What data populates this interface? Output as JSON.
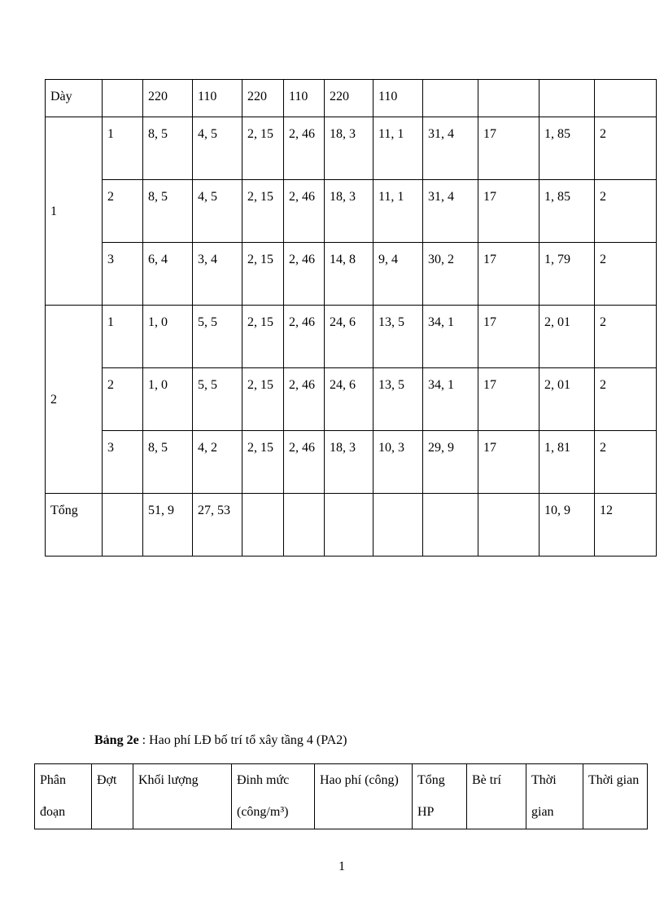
{
  "table1": {
    "header": [
      "Dày",
      "",
      "220",
      "110",
      "220",
      "110",
      "220",
      "110",
      "",
      "",
      "",
      ""
    ],
    "groups": [
      {
        "label": "1",
        "rows": [
          [
            "1",
            "8, 5",
            "4, 5",
            "2, 15",
            "2, 46",
            "18, 3",
            "11, 1",
            "31, 4",
            "17",
            "1, 85",
            "2"
          ],
          [
            "2",
            "8, 5",
            "4, 5",
            "2, 15",
            "2, 46",
            "18, 3",
            "11, 1",
            "31, 4",
            "17",
            "1, 85",
            "2"
          ],
          [
            "3",
            "6, 4",
            "3, 4",
            "2, 15",
            "2, 46",
            "14, 8",
            "9, 4",
            "30, 2",
            "17",
            "1, 79",
            "2"
          ]
        ]
      },
      {
        "label": "2",
        "rows": [
          [
            "1",
            "1, 0",
            "5, 5",
            "2, 15",
            "2, 46",
            "24, 6",
            "13, 5",
            "34, 1",
            "17",
            "2, 01",
            "2"
          ],
          [
            "2",
            "1, 0",
            "5, 5",
            "2, 15",
            "2, 46",
            "24, 6",
            "13, 5",
            "34, 1",
            "17",
            "2, 01",
            "2"
          ],
          [
            "3",
            "8, 5",
            "4, 2",
            "2, 15",
            "2, 46",
            "18, 3",
            "10, 3",
            "29, 9",
            "17",
            "1, 81",
            "2"
          ]
        ]
      }
    ],
    "total": [
      "Tổng",
      "",
      "51, 9",
      "27, 53",
      "",
      "",
      "",
      "",
      "",
      "",
      "10, 9",
      "12"
    ]
  },
  "caption": {
    "label": "Bảng 2e",
    "text": " : Hao phí LĐ bố trí tổ xây tầng 4 (PA2)"
  },
  "table2": {
    "header": [
      "Phân đoạn",
      "Đợt",
      "Khối lượng",
      "Đinh mức (công/m³)",
      "Hao phí (công)",
      "Tổng HP",
      "Bè trí",
      "Thời gian",
      "Thời gian"
    ]
  },
  "page_number": "1"
}
